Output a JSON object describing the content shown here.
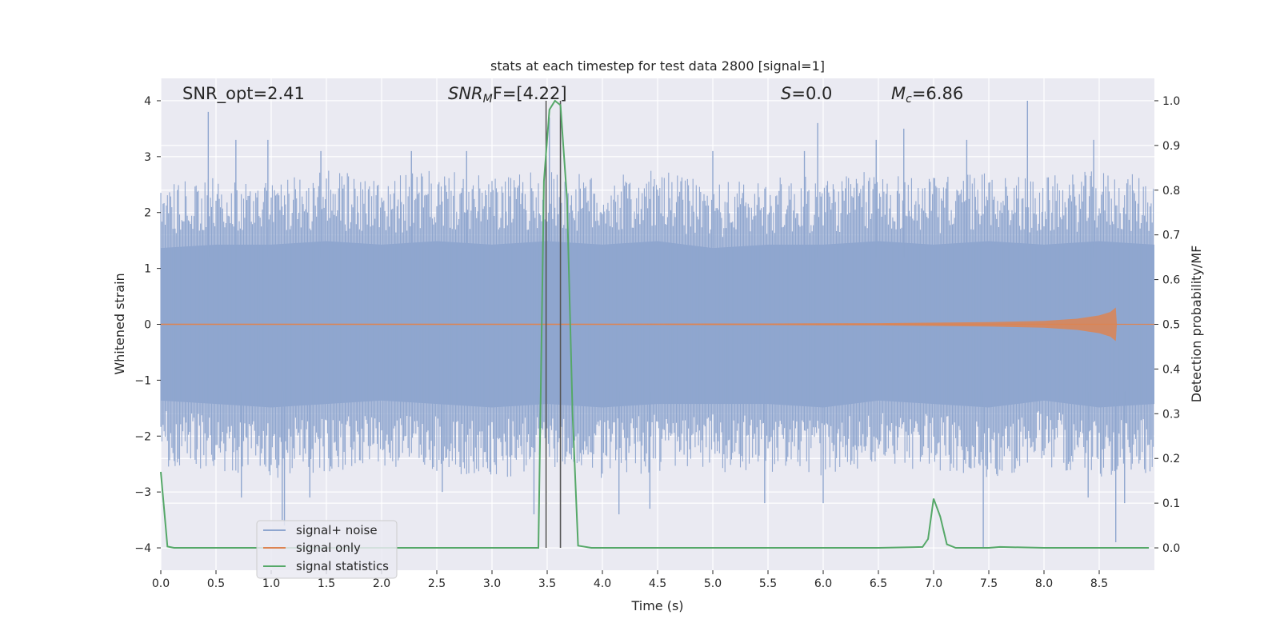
{
  "chart_data": {
    "type": "line",
    "title": "stats at each timestep for test data 2800 [signal=1]",
    "xlabel": "Time (s)",
    "ylabel": "Whitened strain",
    "y2label": "Detection probability/MF",
    "xlim": [
      0,
      9.0
    ],
    "ylim": [
      -4.4,
      4.4
    ],
    "y2lim": [
      -0.05,
      1.05
    ],
    "x_ticks": [
      "0.0",
      "0.5",
      "1.0",
      "1.5",
      "2.0",
      "2.5",
      "3.0",
      "3.5",
      "4.0",
      "4.5",
      "5.0",
      "5.5",
      "6.0",
      "6.5",
      "7.0",
      "7.5",
      "8.0",
      "8.5"
    ],
    "x_tick_values": [
      0,
      0.5,
      1,
      1.5,
      2,
      2.5,
      3,
      3.5,
      4,
      4.5,
      5,
      5.5,
      6,
      6.5,
      7,
      7.5,
      8,
      8.5
    ],
    "y_ticks": [
      "4",
      "3",
      "2",
      "1",
      "0",
      "−1",
      "−2",
      "−3",
      "−4"
    ],
    "y_tick_values": [
      4,
      3,
      2,
      1,
      0,
      -1,
      -2,
      -3,
      -4
    ],
    "y2_ticks": [
      "1.0",
      "0.9",
      "0.8",
      "0.7",
      "0.6",
      "0.5",
      "0.4",
      "0.3",
      "0.2",
      "0.1",
      "0.0"
    ],
    "y2_tick_values": [
      1.0,
      0.9,
      0.8,
      0.7,
      0.6,
      0.5,
      0.4,
      0.3,
      0.2,
      0.1,
      0.0
    ],
    "grid": true,
    "legend_position": "lower-left",
    "annotations": {
      "snr_opt": "SNR_opt=2.41",
      "snr_mf_main": "SNR",
      "snr_mf_sub": "M",
      "snr_mf_rest": "F=[4.22]",
      "s_main": "S",
      "s_rest": "=0.0",
      "mc_main": "M",
      "mc_sub": "c",
      "mc_rest": "=6.86"
    },
    "vlines": [
      3.49,
      3.62
    ],
    "series": [
      {
        "name": "signal+ noise",
        "color": "#8fa6cf",
        "axis": "left",
        "envelope": {
          "x": [
            0,
            0.5,
            1,
            1.5,
            2,
            2.5,
            3,
            3.5,
            4,
            4.5,
            5,
            5.5,
            6,
            6.5,
            7,
            7.5,
            8,
            8.5,
            9
          ],
          "upper": [
            2.2,
            2.3,
            2.3,
            2.4,
            2.3,
            2.4,
            2.3,
            2.4,
            2.3,
            2.4,
            2.2,
            2.3,
            2.3,
            2.4,
            2.3,
            2.4,
            2.3,
            2.4,
            2.3
          ],
          "lower": [
            -2.2,
            -2.3,
            -2.4,
            -2.3,
            -2.2,
            -2.3,
            -2.4,
            -2.3,
            -2.4,
            -2.3,
            -2.3,
            -2.3,
            -2.4,
            -2.2,
            -2.3,
            -2.4,
            -2.2,
            -2.4,
            -2.3
          ]
        },
        "peaks": [
          {
            "x": 0.43,
            "y": 3.8
          },
          {
            "x": 0.68,
            "y": 3.3
          },
          {
            "x": 0.97,
            "y": 3.3
          },
          {
            "x": 1.45,
            "y": 3.1
          },
          {
            "x": 2.27,
            "y": 3.1
          },
          {
            "x": 2.77,
            "y": 3.1
          },
          {
            "x": 3.52,
            "y": 3.7
          },
          {
            "x": 5.0,
            "y": 3.1
          },
          {
            "x": 5.83,
            "y": 3.1
          },
          {
            "x": 5.95,
            "y": 3.6
          },
          {
            "x": 6.48,
            "y": 3.3
          },
          {
            "x": 6.73,
            "y": 3.5
          },
          {
            "x": 7.3,
            "y": 3.3
          },
          {
            "x": 7.85,
            "y": 4.0
          },
          {
            "x": 8.45,
            "y": 3.3
          },
          {
            "x": 1.1,
            "y": -3.5
          },
          {
            "x": 1.12,
            "y": -3.6
          },
          {
            "x": 0.73,
            "y": -3.1
          },
          {
            "x": 1.35,
            "y": -3.1
          },
          {
            "x": 2.55,
            "y": -3.0
          },
          {
            "x": 3.38,
            "y": -3.4
          },
          {
            "x": 4.15,
            "y": -3.4
          },
          {
            "x": 4.43,
            "y": -3.3
          },
          {
            "x": 5.47,
            "y": -3.2
          },
          {
            "x": 6.0,
            "y": -3.2
          },
          {
            "x": 7.45,
            "y": -4.0
          },
          {
            "x": 8.4,
            "y": -3.1
          },
          {
            "x": 8.65,
            "y": -3.9
          },
          {
            "x": 8.73,
            "y": -3.2
          }
        ]
      },
      {
        "name": "signal only",
        "color": "#dd8452",
        "axis": "left",
        "envelope": {
          "x": [
            0,
            3.5,
            5.5,
            6.5,
            7.5,
            8.0,
            8.3,
            8.5,
            8.6,
            8.65,
            8.66,
            9.0
          ],
          "upper": [
            0.01,
            0.01,
            0.015,
            0.02,
            0.04,
            0.06,
            0.1,
            0.16,
            0.22,
            0.3,
            0.0,
            0.0
          ],
          "lower": [
            -0.01,
            -0.01,
            -0.015,
            -0.02,
            -0.04,
            -0.06,
            -0.1,
            -0.16,
            -0.22,
            -0.3,
            0.0,
            0.0
          ]
        }
      },
      {
        "name": "signal statistics",
        "color": "#55a868",
        "axis": "right",
        "x": [
          0,
          0.06,
          0.12,
          0.5,
          1,
          1.5,
          2,
          2.5,
          3,
          3.42,
          3.47,
          3.52,
          3.57,
          3.62,
          3.68,
          3.73,
          3.78,
          3.9,
          4.5,
          5,
          5.5,
          6,
          6.5,
          6.9,
          6.95,
          7.0,
          7.06,
          7.12,
          7.2,
          7.5,
          7.6,
          8,
          8.5,
          8.95
        ],
        "values": [
          0.17,
          0.003,
          0.0,
          0.0,
          0.0,
          0.0,
          0.0,
          0.0,
          0.0,
          0.0,
          0.82,
          0.98,
          1.0,
          0.99,
          0.78,
          0.3,
          0.005,
          0.0,
          0.0,
          0.0,
          0.0,
          0.0,
          0.0,
          0.002,
          0.02,
          0.11,
          0.07,
          0.008,
          0.0,
          0.0,
          0.002,
          0.0,
          0.0,
          0.0
        ]
      }
    ]
  }
}
